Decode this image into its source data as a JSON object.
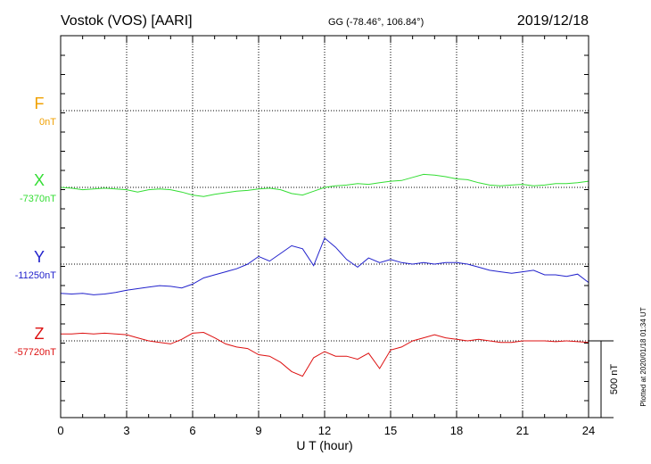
{
  "header": {
    "station": "Vostok (VOS)  [AARI]",
    "coords": "GG (-78.46°, 106.84°)",
    "date": "2019/12/18"
  },
  "side_note": "Plotted at 2020/01/18 01:34 UT",
  "scale_bar_label": "500 nT",
  "chart_data": {
    "type": "line",
    "xlabel": "U T (hour)",
    "xlim": [
      0,
      24
    ],
    "x_ticks": [
      0,
      3,
      6,
      9,
      12,
      15,
      18,
      21,
      24
    ],
    "grid": true,
    "scale_nT": 500,
    "series": [
      {
        "name": "F",
        "baseline_label": "0nT",
        "color": "#f0a000",
        "x": [],
        "values": []
      },
      {
        "name": "X",
        "baseline_label": "-7370nT",
        "color": "#33dd33",
        "x": [
          0,
          0.5,
          1,
          1.5,
          2,
          2.5,
          3,
          3.5,
          4,
          4.5,
          5,
          5.5,
          6,
          6.5,
          7,
          7.5,
          8,
          8.5,
          9,
          9.5,
          10,
          10.5,
          11,
          11.5,
          12,
          12.5,
          13,
          13.5,
          14,
          14.5,
          15,
          15.5,
          16,
          16.5,
          17,
          17.5,
          18,
          18.5,
          19,
          19.5,
          20,
          20.5,
          21,
          21.5,
          22,
          22.5,
          23,
          23.5,
          24
        ],
        "values": [
          -7370,
          -7375,
          -7385,
          -7380,
          -7375,
          -7380,
          -7385,
          -7400,
          -7385,
          -7380,
          -7385,
          -7400,
          -7420,
          -7430,
          -7415,
          -7405,
          -7395,
          -7390,
          -7380,
          -7375,
          -7385,
          -7410,
          -7420,
          -7395,
          -7370,
          -7360,
          -7355,
          -7345,
          -7350,
          -7340,
          -7330,
          -7325,
          -7305,
          -7285,
          -7290,
          -7300,
          -7315,
          -7320,
          -7340,
          -7355,
          -7360,
          -7355,
          -7350,
          -7360,
          -7355,
          -7345,
          -7345,
          -7340,
          -7330
        ]
      },
      {
        "name": "Y",
        "baseline_label": "-11250nT",
        "color": "#2222cc",
        "x": [
          0,
          0.5,
          1,
          1.5,
          2,
          2.5,
          3,
          3.5,
          4,
          4.5,
          5,
          5.5,
          6,
          6.5,
          7,
          7.5,
          8,
          8.5,
          9,
          9.5,
          10,
          10.5,
          11,
          11.5,
          12,
          12.5,
          13,
          13.5,
          14,
          14.5,
          15,
          15.5,
          16,
          16.5,
          17,
          17.5,
          18,
          18.5,
          19,
          19.5,
          20,
          20.5,
          21,
          21.5,
          22,
          22.5,
          23,
          23.5,
          24
        ],
        "values": [
          -11440,
          -11445,
          -11440,
          -11450,
          -11445,
          -11435,
          -11420,
          -11410,
          -11400,
          -11390,
          -11395,
          -11405,
          -11380,
          -11340,
          -11320,
          -11300,
          -11280,
          -11250,
          -11200,
          -11230,
          -11180,
          -11130,
          -11150,
          -11260,
          -11080,
          -11140,
          -11220,
          -11270,
          -11210,
          -11240,
          -11220,
          -11240,
          -11250,
          -11240,
          -11250,
          -11240,
          -11240,
          -11250,
          -11270,
          -11290,
          -11300,
          -11310,
          -11300,
          -11290,
          -11320,
          -11320,
          -11330,
          -11315,
          -11370
        ]
      },
      {
        "name": "Z",
        "baseline_label": "-57720nT",
        "color": "#dd1111",
        "x": [
          0,
          0.5,
          1,
          1.5,
          2,
          2.5,
          3,
          3.5,
          4,
          4.5,
          5,
          5.5,
          6,
          6.5,
          7,
          7.5,
          8,
          8.5,
          9,
          9.5,
          10,
          10.5,
          11,
          11.5,
          12,
          12.5,
          13,
          13.5,
          14,
          14.5,
          15,
          15.5,
          16,
          16.5,
          17,
          17.5,
          18,
          18.5,
          19,
          19.5,
          20,
          20.5,
          21,
          21.5,
          22,
          22.5,
          23,
          23.5,
          24
        ],
        "values": [
          -57675,
          -57675,
          -57670,
          -57675,
          -57670,
          -57675,
          -57680,
          -57700,
          -57720,
          -57730,
          -57740,
          -57710,
          -57670,
          -57665,
          -57700,
          -57740,
          -57760,
          -57770,
          -57810,
          -57820,
          -57860,
          -57920,
          -57950,
          -57830,
          -57790,
          -57820,
          -57820,
          -57840,
          -57800,
          -57900,
          -57780,
          -57760,
          -57720,
          -57700,
          -57680,
          -57700,
          -57710,
          -57720,
          -57710,
          -57720,
          -57730,
          -57730,
          -57720,
          -57720,
          -57720,
          -57725,
          -57720,
          -57725,
          -57730
        ]
      }
    ]
  }
}
